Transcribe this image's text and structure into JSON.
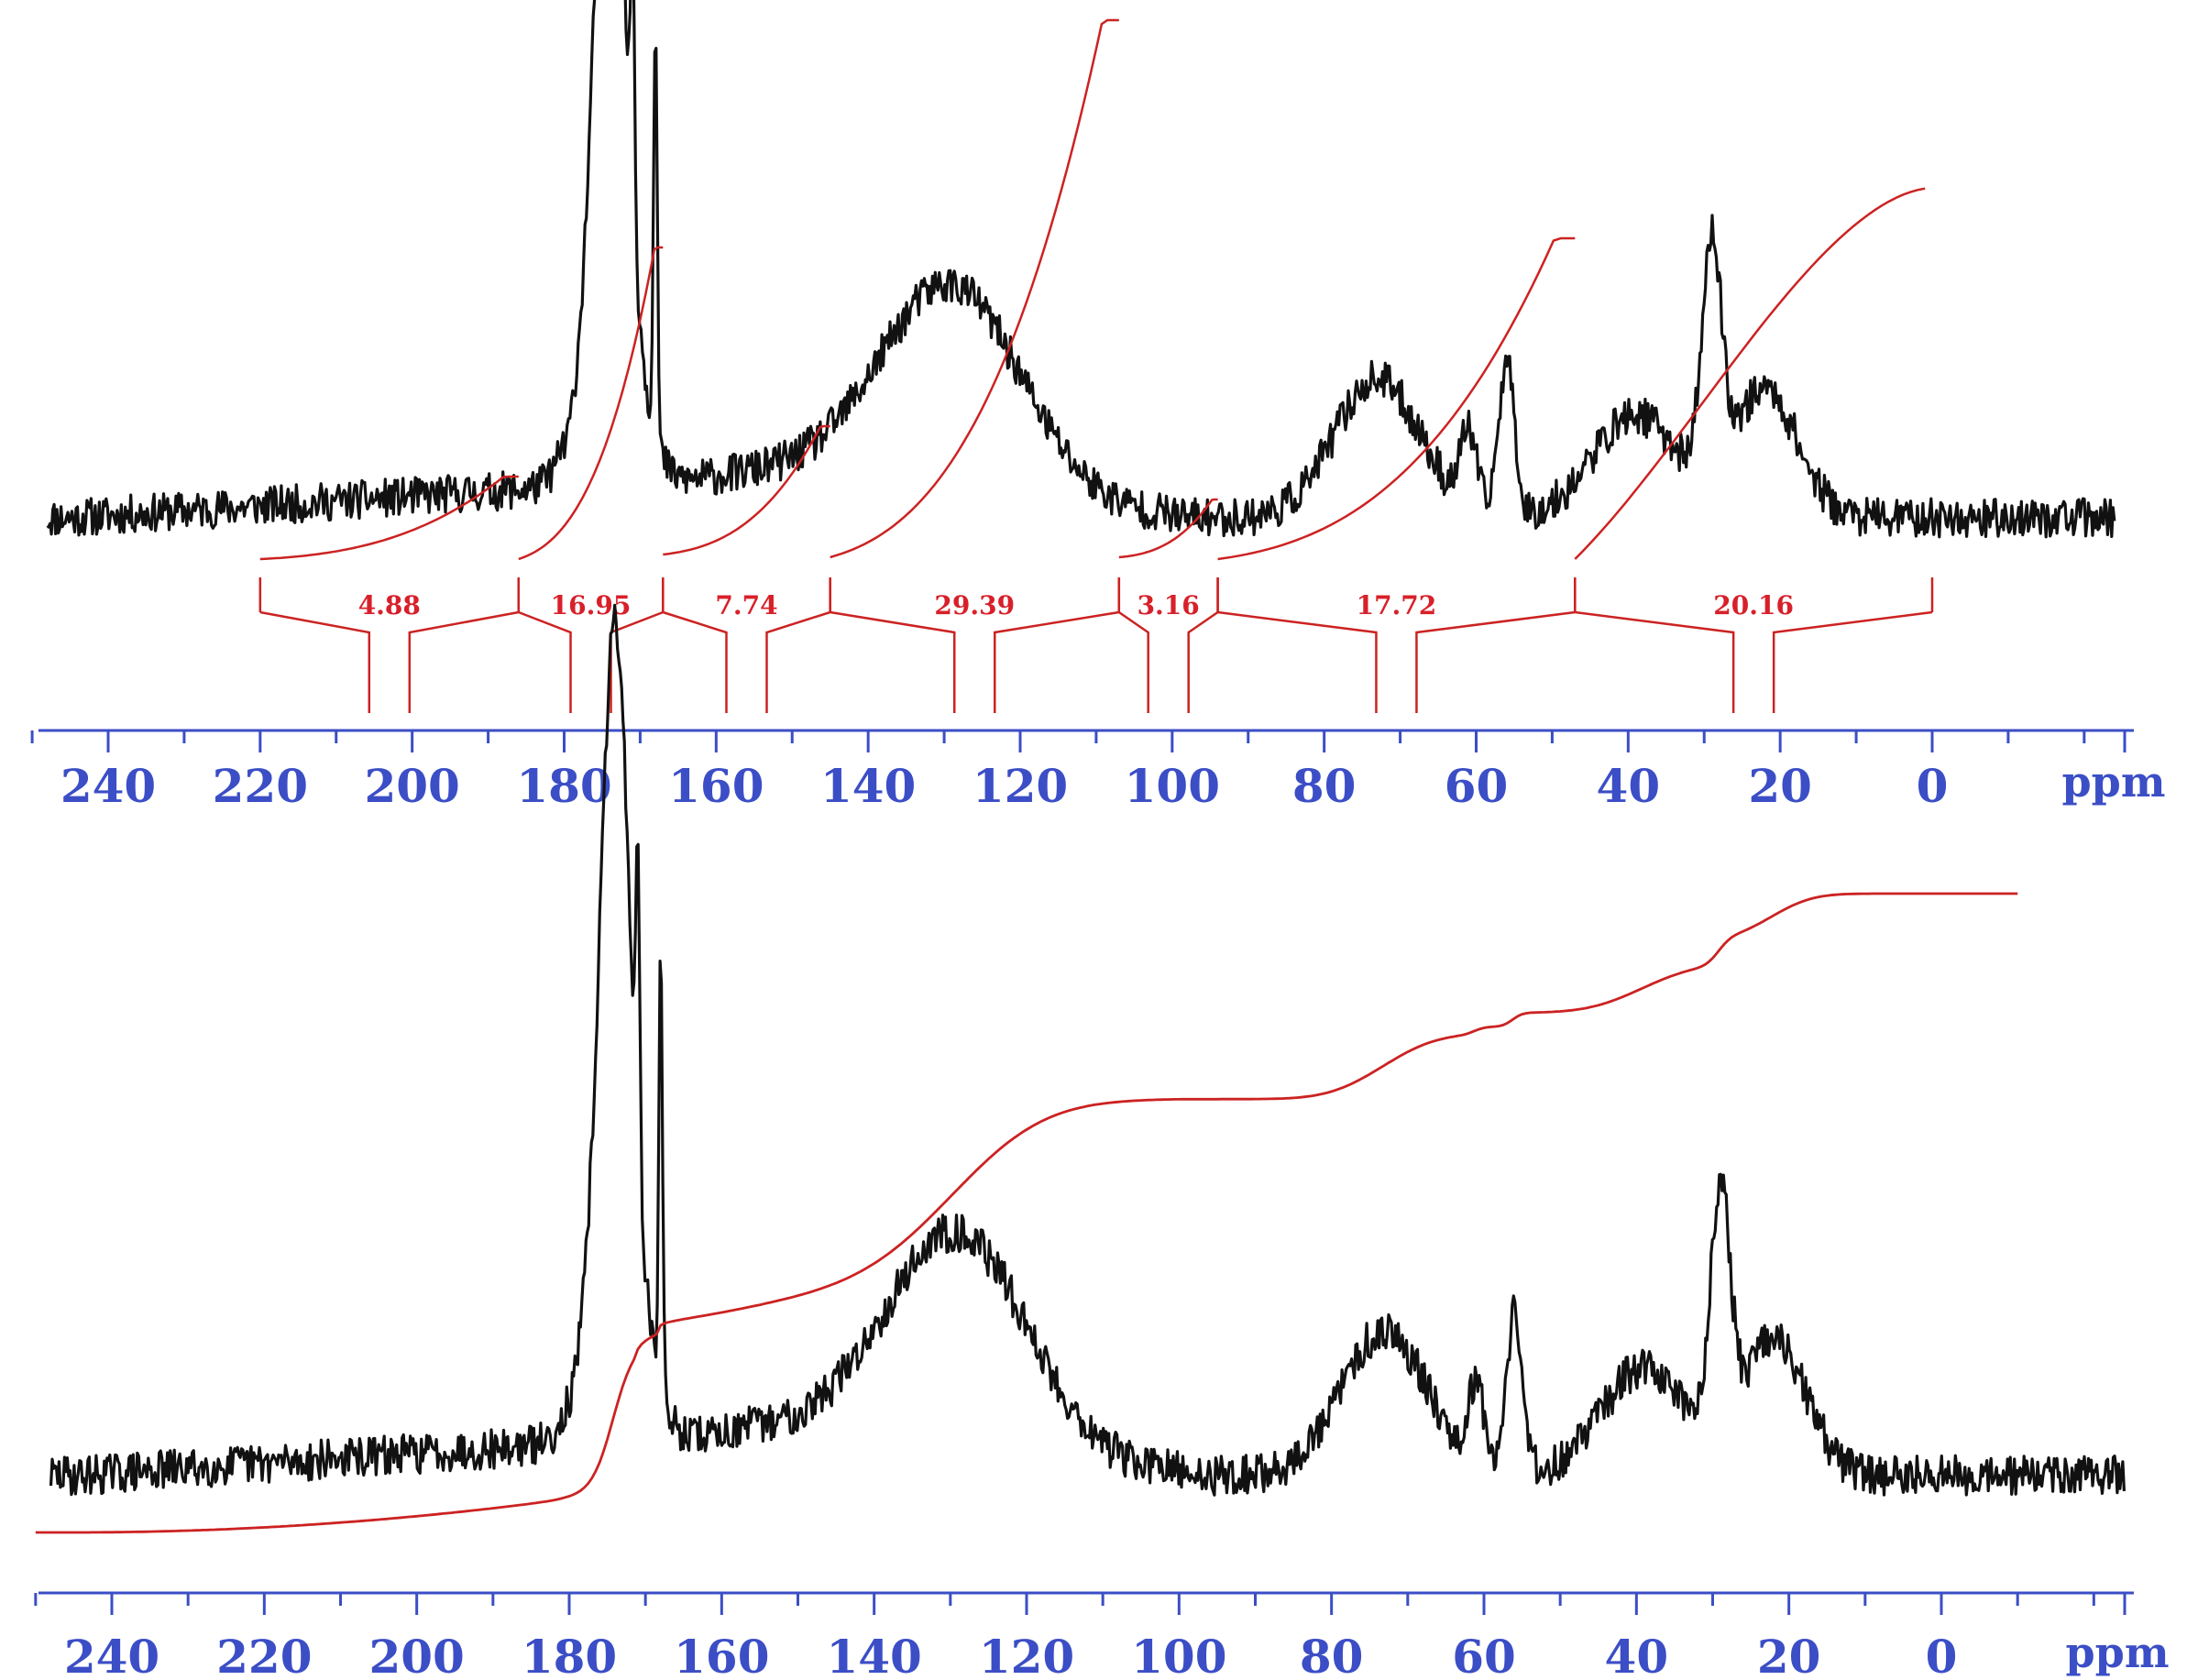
{
  "chart_data": [
    {
      "type": "line",
      "title": "",
      "xlabel": "",
      "ylabel": "",
      "x_unit": "ppm",
      "xlim": [
        250,
        -25
      ],
      "x_reversed": true,
      "x_ticks": [
        240,
        220,
        200,
        180,
        160,
        140,
        120,
        100,
        80,
        60,
        40,
        20,
        0
      ],
      "x_minor_tick_step": 10,
      "colors": {
        "spectrum": "#111111",
        "integral": "#cc2222",
        "axis": "#3b4ec6"
      },
      "spectrum_peaks": [
        {
          "ppm": 174,
          "height": 1.0,
          "width": 2.5,
          "sharp": true
        },
        {
          "ppm": 174,
          "height": 0.55,
          "width": 4.5,
          "sharp": false
        },
        {
          "ppm": 171,
          "height": 0.55,
          "width": 0.35,
          "sharp": true
        },
        {
          "ppm": 168,
          "height": 0.82,
          "width": 0.35,
          "sharp": true
        },
        {
          "ppm": 129,
          "height": 0.4,
          "width": 13,
          "sharp": false
        },
        {
          "ppm": 73,
          "height": 0.27,
          "width": 8,
          "sharp": false
        },
        {
          "ppm": 61,
          "height": 0.15,
          "width": 1.5,
          "sharp": false
        },
        {
          "ppm": 56,
          "height": 0.3,
          "width": 1.5,
          "sharp": true
        },
        {
          "ppm": 39,
          "height": 0.2,
          "width": 8,
          "sharp": false
        },
        {
          "ppm": 29,
          "height": 0.45,
          "width": 1.8,
          "sharp": true
        },
        {
          "ppm": 22,
          "height": 0.25,
          "width": 6,
          "sharp": false
        }
      ],
      "integral_regions": [
        {
          "from": 220,
          "to": 186,
          "label": "4.88"
        },
        {
          "from": 186,
          "to": 167,
          "label": "16.95"
        },
        {
          "from": 167,
          "to": 145,
          "label": "7.74"
        },
        {
          "from": 145,
          "to": 107,
          "label": "29.39"
        },
        {
          "from": 107,
          "to": 94,
          "label": "3.16"
        },
        {
          "from": 94,
          "to": 47,
          "label": "17.72"
        },
        {
          "from": 47,
          "to": 0,
          "label": "20.16"
        }
      ]
    },
    {
      "type": "line",
      "title": "",
      "xlabel": "",
      "ylabel": "",
      "x_unit": "ppm",
      "xlim": [
        250,
        -25
      ],
      "x_reversed": true,
      "x_ticks": [
        240,
        220,
        200,
        180,
        160,
        140,
        120,
        100,
        80,
        60,
        40,
        20,
        0
      ],
      "x_minor_tick_step": 10,
      "colors": {
        "spectrum": "#111111",
        "integral": "#cc2222",
        "axis": "#3b4ec6"
      },
      "integral_curve": {
        "from": 250,
        "to": -10,
        "description": "cumulative integral over full range"
      }
    }
  ]
}
